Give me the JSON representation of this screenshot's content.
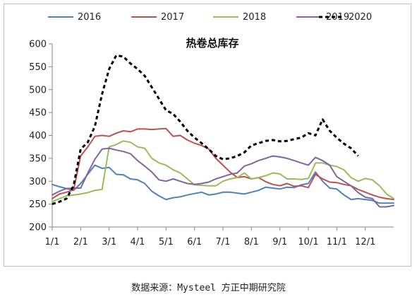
{
  "chart_data": {
    "type": "line",
    "title": "热卷总库存",
    "xlabel": "",
    "ylabel": "",
    "ylim": [
      200,
      600
    ],
    "yticks": [
      200,
      250,
      300,
      350,
      400,
      450,
      500,
      550,
      600
    ],
    "x_range": [
      1,
      13
    ],
    "xticks": [
      {
        "label": "1/1",
        "x": 1
      },
      {
        "label": "2/1",
        "x": 2
      },
      {
        "label": "3/1",
        "x": 3
      },
      {
        "label": "4/1",
        "x": 4
      },
      {
        "label": "5/1",
        "x": 5
      },
      {
        "label": "6/1",
        "x": 6
      },
      {
        "label": "7/1",
        "x": 7
      },
      {
        "label": "8/1",
        "x": 8
      },
      {
        "label": "9/1",
        "x": 9
      },
      {
        "label": "10/1",
        "x": 10
      },
      {
        "label": "11/1",
        "x": 11
      },
      {
        "label": "12/1",
        "x": 12
      }
    ],
    "legend_position": "top",
    "grid": false,
    "series": [
      {
        "name": "2016",
        "color": "#4f81bd",
        "dash": false,
        "points": [
          [
            1,
            293
          ],
          [
            1.25,
            288
          ],
          [
            1.5,
            284
          ],
          [
            1.75,
            280
          ],
          [
            2,
            295
          ],
          [
            2.25,
            315
          ],
          [
            2.5,
            335
          ],
          [
            2.75,
            328
          ],
          [
            3,
            330
          ],
          [
            3.25,
            315
          ],
          [
            3.5,
            314
          ],
          [
            3.75,
            305
          ],
          [
            4,
            303
          ],
          [
            4.25,
            295
          ],
          [
            4.5,
            278
          ],
          [
            4.75,
            268
          ],
          [
            5,
            260
          ],
          [
            5.25,
            264
          ],
          [
            5.5,
            266
          ],
          [
            5.75,
            270
          ],
          [
            6,
            273
          ],
          [
            6.25,
            276
          ],
          [
            6.5,
            270
          ],
          [
            6.75,
            272
          ],
          [
            7,
            276
          ],
          [
            7.25,
            276
          ],
          [
            7.5,
            274
          ],
          [
            7.75,
            272
          ],
          [
            8,
            276
          ],
          [
            8.25,
            280
          ],
          [
            8.5,
            287
          ],
          [
            8.75,
            285
          ],
          [
            9,
            283
          ],
          [
            9.25,
            287
          ],
          [
            9.5,
            286
          ],
          [
            9.75,
            292
          ],
          [
            10,
            295
          ],
          [
            10.25,
            320
          ],
          [
            10.5,
            300
          ],
          [
            10.75,
            285
          ],
          [
            11,
            283
          ],
          [
            11.25,
            270
          ],
          [
            11.5,
            260
          ],
          [
            11.75,
            262
          ],
          [
            12,
            260
          ],
          [
            12.25,
            258
          ],
          [
            12.5,
            252
          ],
          [
            12.75,
            252
          ],
          [
            13,
            252
          ]
        ]
      },
      {
        "name": "2017",
        "color": "#c0504d",
        "dash": false,
        "points": [
          [
            1,
            262
          ],
          [
            1.25,
            272
          ],
          [
            1.5,
            276
          ],
          [
            1.75,
            281
          ],
          [
            2,
            355
          ],
          [
            2.25,
            375
          ],
          [
            2.5,
            398
          ],
          [
            2.75,
            400
          ],
          [
            3,
            398
          ],
          [
            3.25,
            405
          ],
          [
            3.5,
            410
          ],
          [
            3.75,
            408
          ],
          [
            4,
            414
          ],
          [
            4.25,
            414
          ],
          [
            4.5,
            413
          ],
          [
            4.75,
            414
          ],
          [
            5,
            415
          ],
          [
            5.25,
            398
          ],
          [
            5.5,
            400
          ],
          [
            5.75,
            390
          ],
          [
            6,
            383
          ],
          [
            6.25,
            378
          ],
          [
            6.5,
            370
          ],
          [
            6.75,
            350
          ],
          [
            7,
            335
          ],
          [
            7.25,
            320
          ],
          [
            7.5,
            308
          ],
          [
            7.75,
            310
          ],
          [
            8,
            305
          ],
          [
            8.25,
            308
          ],
          [
            8.5,
            299
          ],
          [
            8.75,
            293
          ],
          [
            9,
            290
          ],
          [
            9.25,
            295
          ],
          [
            9.5,
            289
          ],
          [
            9.75,
            290
          ],
          [
            10,
            286
          ],
          [
            10.25,
            315
          ],
          [
            10.5,
            305
          ],
          [
            10.75,
            298
          ],
          [
            11,
            297
          ],
          [
            11.25,
            293
          ],
          [
            11.5,
            290
          ],
          [
            11.75,
            282
          ],
          [
            12,
            276
          ],
          [
            12.25,
            270
          ],
          [
            12.5,
            265
          ],
          [
            12.75,
            262
          ],
          [
            13,
            260
          ]
        ]
      },
      {
        "name": "2018",
        "color": "#9bbb59",
        "dash": false,
        "points": [
          [
            1,
            255
          ],
          [
            1.25,
            262
          ],
          [
            1.5,
            268
          ],
          [
            1.75,
            270
          ],
          [
            2,
            272
          ],
          [
            2.25,
            275
          ],
          [
            2.5,
            280
          ],
          [
            2.75,
            282
          ],
          [
            3,
            375
          ],
          [
            3.25,
            380
          ],
          [
            3.5,
            388
          ],
          [
            3.75,
            385
          ],
          [
            4,
            375
          ],
          [
            4.25,
            372
          ],
          [
            4.5,
            350
          ],
          [
            4.75,
            340
          ],
          [
            5,
            335
          ],
          [
            5.25,
            325
          ],
          [
            5.5,
            318
          ],
          [
            5.75,
            305
          ],
          [
            6,
            292
          ],
          [
            6.25,
            291
          ],
          [
            6.5,
            290
          ],
          [
            6.75,
            290
          ],
          [
            7,
            300
          ],
          [
            7.25,
            305
          ],
          [
            7.5,
            308
          ],
          [
            7.75,
            318
          ],
          [
            8,
            305
          ],
          [
            8.25,
            308
          ],
          [
            8.5,
            312
          ],
          [
            8.75,
            318
          ],
          [
            9,
            316
          ],
          [
            9.25,
            305
          ],
          [
            9.5,
            305
          ],
          [
            9.75,
            304
          ],
          [
            10,
            306
          ],
          [
            10.25,
            340
          ],
          [
            10.5,
            340
          ],
          [
            10.75,
            335
          ],
          [
            11,
            332
          ],
          [
            11.25,
            325
          ],
          [
            11.5,
            308
          ],
          [
            11.75,
            300
          ],
          [
            12,
            306
          ],
          [
            12.25,
            303
          ],
          [
            12.5,
            290
          ],
          [
            12.75,
            272
          ],
          [
            13,
            262
          ]
        ]
      },
      {
        "name": "2019",
        "color": "#8064a2",
        "dash": false,
        "points": [
          [
            1,
            270
          ],
          [
            1.25,
            278
          ],
          [
            1.5,
            284
          ],
          [
            1.75,
            285
          ],
          [
            2,
            285
          ],
          [
            2.25,
            318
          ],
          [
            2.5,
            348
          ],
          [
            2.75,
            370
          ],
          [
            3,
            372
          ],
          [
            3.25,
            368
          ],
          [
            3.5,
            365
          ],
          [
            3.75,
            360
          ],
          [
            4,
            345
          ],
          [
            4.25,
            333
          ],
          [
            4.5,
            320
          ],
          [
            4.75,
            303
          ],
          [
            5,
            300
          ],
          [
            5.25,
            305
          ],
          [
            5.5,
            300
          ],
          [
            5.75,
            295
          ],
          [
            6,
            293
          ],
          [
            6.25,
            295
          ],
          [
            6.5,
            298
          ],
          [
            6.75,
            305
          ],
          [
            7,
            310
          ],
          [
            7.25,
            315
          ],
          [
            7.5,
            318
          ],
          [
            7.75,
            333
          ],
          [
            8,
            338
          ],
          [
            8.25,
            345
          ],
          [
            8.5,
            350
          ],
          [
            8.75,
            355
          ],
          [
            9,
            353
          ],
          [
            9.25,
            350
          ],
          [
            9.5,
            345
          ],
          [
            9.75,
            340
          ],
          [
            10,
            335
          ],
          [
            10.25,
            352
          ],
          [
            10.5,
            345
          ],
          [
            10.75,
            335
          ],
          [
            11,
            310
          ],
          [
            11.25,
            300
          ],
          [
            11.5,
            290
          ],
          [
            11.75,
            275
          ],
          [
            12,
            265
          ],
          [
            12.25,
            262
          ],
          [
            12.5,
            244
          ],
          [
            12.75,
            244
          ],
          [
            13,
            247
          ]
        ]
      },
      {
        "name": "2020",
        "color": "#000000",
        "dash": true,
        "points": [
          [
            1,
            250
          ],
          [
            1.25,
            255
          ],
          [
            1.5,
            262
          ],
          [
            1.75,
            290
          ],
          [
            2,
            370
          ],
          [
            2.25,
            385
          ],
          [
            2.5,
            420
          ],
          [
            2.75,
            490
          ],
          [
            3,
            545
          ],
          [
            3.25,
            575
          ],
          [
            3.5,
            572
          ],
          [
            3.75,
            557
          ],
          [
            4,
            545
          ],
          [
            4.25,
            530
          ],
          [
            4.5,
            505
          ],
          [
            4.75,
            480
          ],
          [
            5,
            455
          ],
          [
            5.25,
            447
          ],
          [
            5.5,
            430
          ],
          [
            5.75,
            410
          ],
          [
            6,
            395
          ],
          [
            6.25,
            383
          ],
          [
            6.5,
            370
          ],
          [
            6.75,
            355
          ],
          [
            7,
            348
          ],
          [
            7.25,
            350
          ],
          [
            7.5,
            355
          ],
          [
            7.75,
            363
          ],
          [
            8,
            378
          ],
          [
            8.25,
            383
          ],
          [
            8.5,
            388
          ],
          [
            8.75,
            390
          ],
          [
            9,
            387
          ],
          [
            9.25,
            388
          ],
          [
            9.5,
            392
          ],
          [
            9.75,
            395
          ],
          [
            10,
            405
          ],
          [
            10.25,
            400
          ],
          [
            10.5,
            435
          ],
          [
            10.75,
            410
          ],
          [
            11,
            395
          ],
          [
            11.25,
            382
          ],
          [
            11.5,
            372
          ],
          [
            11.75,
            355
          ]
        ]
      }
    ]
  },
  "source_note": "数据来源：Mysteel 方正中期研究院"
}
